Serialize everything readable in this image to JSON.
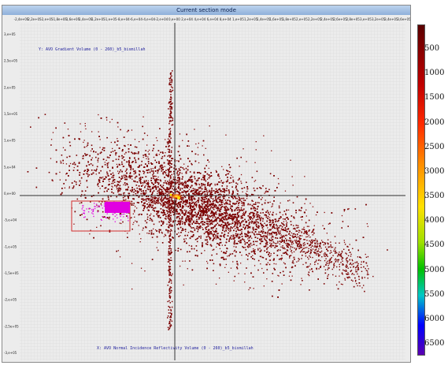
{
  "window": {
    "title": "Current section mode"
  },
  "plot": {
    "y_caption": "Y: AVO Gradient Volume (0 - 260)_b5_bismillah",
    "x_caption": "X: AVO Normal Incidence Reflectivity Volume (0 - 260)_b5_bismillah",
    "x_ticks": [
      "-2,4e+05",
      "-2,2e+05",
      "-2,e+05",
      "-1,8e+05",
      "-1,6e+05",
      "-1,4e+05",
      "-1,2e+05",
      "-1,e+05",
      "-8,e+04",
      "-6,e+04",
      "-4,e+04",
      "-2,e+04",
      "0,e+00",
      "2,e+04",
      "4,e+04",
      "6,e+04",
      "8,e+04",
      "1,e+05",
      "1,2e+05",
      "1,4e+05",
      "1,6e+05",
      "1,8e+05",
      "2,e+05",
      "2,2e+05",
      "2,4e+05",
      "2,6e+05",
      "2,8e+05",
      "3,e+05",
      "3,2e+05",
      "3,4e+05",
      "3,6e+05"
    ],
    "y_ticks": [
      "3,e+05",
      "2,5e+05",
      "2,e+05",
      "1,5e+05",
      "1,e+05",
      "5,e+04",
      "0,e+00",
      "-5,e+04",
      "-1,e+05",
      "-1,5e+05",
      "-2,e+05",
      "-2,5e+05",
      "-3,e+05"
    ],
    "accent_colors": {
      "cloud": "#7a0000",
      "crosshair": "#333333",
      "selection_box": "#d22a2a",
      "selected_points": "#e100e1",
      "hotspot": "#ffd000"
    }
  },
  "colorbar": {
    "labels": [
      "500",
      "1000",
      "1500",
      "2000",
      "2500",
      "3000",
      "3500",
      "4000",
      "4500",
      "5000",
      "5500",
      "6000",
      "6500"
    ]
  }
}
